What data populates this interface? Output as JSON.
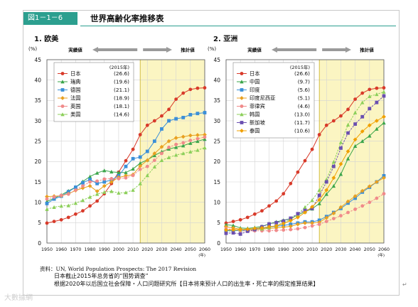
{
  "header": {
    "badge": "図1－1－6",
    "title": "世界高齢化率推移表"
  },
  "panels": [
    {
      "title": "1. 欧美"
    },
    {
      "title": "2. 亚洲"
    }
  ],
  "chart_data": [
    {
      "type": "line",
      "title": "1. 欧美",
      "unit_label": "(%)",
      "actual_label": "実績値",
      "projected_label": "推計値",
      "x_axis_unit": "(年)",
      "ylim": [
        0,
        45
      ],
      "yticks": [
        0,
        5,
        10,
        15,
        20,
        25,
        30,
        35,
        40,
        45
      ],
      "xlim": [
        1950,
        2060
      ],
      "xticks": [
        1950,
        1960,
        1970,
        1980,
        1990,
        2000,
        2010,
        2020,
        2030,
        2040,
        2050,
        2060
      ],
      "projection_start": 2015,
      "legend_header": "(2015年)",
      "legend_placement": "top-left",
      "grid": true,
      "x": [
        1950,
        1955,
        1960,
        1965,
        1970,
        1975,
        1980,
        1985,
        1990,
        1995,
        2000,
        2005,
        2010,
        2015,
        2020,
        2025,
        2030,
        2035,
        2040,
        2045,
        2050,
        2055,
        2060
      ],
      "series": [
        {
          "name": "日本",
          "value_2015": "(26.6)",
          "color": "#d83a2a",
          "marker": "circle",
          "values": [
            4.9,
            5.3,
            5.7,
            6.3,
            7.1,
            7.9,
            9.1,
            10.3,
            12.1,
            14.6,
            17.4,
            20.2,
            23.0,
            26.6,
            28.9,
            30.0,
            31.2,
            32.8,
            35.3,
            36.8,
            37.7,
            38.0,
            38.1
          ]
        },
        {
          "name": "瑞典",
          "value_2015": "(19.6)",
          "color": "#3aa54a",
          "marker": "triangle",
          "values": [
            10.2,
            11.0,
            11.8,
            12.8,
            13.7,
            15.1,
            16.3,
            17.2,
            17.8,
            17.5,
            17.3,
            17.3,
            18.2,
            19.6,
            20.4,
            21.5,
            22.4,
            23.1,
            23.5,
            23.9,
            24.5,
            25.0,
            25.5
          ]
        },
        {
          "name": "德国",
          "value_2015": "(21.1)",
          "color": "#3a8fd8",
          "marker": "square",
          "values": [
            9.7,
            10.8,
            11.5,
            12.6,
            13.7,
            14.8,
            15.6,
            14.6,
            15.0,
            15.5,
            16.5,
            18.8,
            20.7,
            21.1,
            22.5,
            25.0,
            28.0,
            30.0,
            30.5,
            30.8,
            31.5,
            31.8,
            32.0
          ]
        },
        {
          "name": "法国",
          "value_2015": "(18.9)",
          "color": "#e8a020",
          "marker": "diamond",
          "values": [
            11.4,
            11.5,
            11.6,
            12.1,
            12.9,
            13.5,
            14.0,
            12.7,
            14.0,
            15.0,
            16.1,
            16.5,
            16.8,
            18.9,
            20.3,
            22.0,
            23.6,
            25.0,
            25.8,
            26.1,
            26.4,
            26.5,
            26.6
          ]
        },
        {
          "name": "英国",
          "value_2015": "(18.1)",
          "color": "#f08a8a",
          "marker": "circle",
          "values": [
            10.8,
            11.3,
            11.7,
            12.0,
            13.0,
            14.0,
            15.0,
            15.2,
            15.7,
            15.8,
            15.8,
            16.0,
            16.6,
            18.1,
            18.8,
            20.3,
            22.0,
            23.5,
            24.2,
            24.6,
            25.2,
            25.6,
            26.0
          ]
        },
        {
          "name": "美国",
          "value_2015": "(14.6)",
          "color": "#8ccf5a",
          "marker": "triangle",
          "values": [
            8.3,
            8.8,
            9.1,
            9.2,
            9.8,
            10.5,
            11.3,
            12.0,
            12.5,
            12.7,
            12.3,
            12.4,
            13.0,
            14.6,
            16.6,
            18.7,
            20.3,
            21.0,
            21.6,
            22.0,
            22.4,
            22.8,
            23.4
          ]
        }
      ]
    },
    {
      "type": "line",
      "title": "2. 亚洲",
      "unit_label": "(%)",
      "actual_label": "実績値",
      "projected_label": "推計値",
      "x_axis_unit": "(年)",
      "ylim": [
        0,
        45
      ],
      "yticks": [
        0,
        5,
        10,
        15,
        20,
        25,
        30,
        35,
        40,
        45
      ],
      "xlim": [
        1950,
        2060
      ],
      "xticks": [
        1950,
        1960,
        1970,
        1980,
        1990,
        2000,
        2010,
        2020,
        2030,
        2040,
        2050,
        2060
      ],
      "projection_start": 2015,
      "legend_header": "(2015年)",
      "legend_placement": "top-left",
      "grid": true,
      "x": [
        1950,
        1955,
        1960,
        1965,
        1970,
        1975,
        1980,
        1985,
        1990,
        1995,
        2000,
        2005,
        2010,
        2015,
        2020,
        2025,
        2030,
        2035,
        2040,
        2045,
        2050,
        2055,
        2060
      ],
      "series": [
        {
          "name": "日本",
          "value_2015": "(26.6)",
          "color": "#d83a2a",
          "marker": "circle",
          "values": [
            4.9,
            5.3,
            5.7,
            6.3,
            7.1,
            7.9,
            9.1,
            10.3,
            12.1,
            14.6,
            17.4,
            20.2,
            23.0,
            26.6,
            28.9,
            30.0,
            31.2,
            32.8,
            35.3,
            36.8,
            37.7,
            38.0,
            38.1
          ]
        },
        {
          "name": "中国",
          "value_2015": "(9.7)",
          "color": "#3aa54a",
          "marker": "triangle",
          "values": [
            4.5,
            4.3,
            3.7,
            3.6,
            3.8,
            4.1,
            4.7,
            5.2,
            5.6,
            6.0,
            6.9,
            7.7,
            8.4,
            9.7,
            12.0,
            14.0,
            16.9,
            20.7,
            23.8,
            25.0,
            26.3,
            28.0,
            29.5
          ]
        },
        {
          "name": "印度",
          "value_2015": "(5.6)",
          "color": "#3a8fd8",
          "marker": "square",
          "values": [
            3.1,
            3.0,
            3.1,
            3.2,
            3.3,
            3.6,
            3.9,
            4.1,
            4.3,
            4.6,
            4.9,
            5.2,
            5.2,
            5.6,
            6.5,
            7.5,
            8.5,
            9.8,
            11.0,
            12.5,
            13.7,
            15.0,
            16.5
          ]
        },
        {
          "name": "印度尼西亚",
          "value_2015": "(5.1)",
          "color": "#e8a020",
          "marker": "diamond",
          "values": [
            4.0,
            3.7,
            3.4,
            3.2,
            3.3,
            3.4,
            3.6,
            3.7,
            3.9,
            4.1,
            4.6,
            4.9,
            4.9,
            5.1,
            6.2,
            7.3,
            8.8,
            10.2,
            11.5,
            12.8,
            13.9,
            15.0,
            16.0
          ]
        },
        {
          "name": "菲律宾",
          "value_2015": "(4.6)",
          "color": "#f08a8a",
          "marker": "circle",
          "values": [
            3.5,
            3.3,
            3.0,
            2.9,
            3.0,
            3.0,
            3.0,
            3.1,
            3.2,
            3.3,
            3.5,
            3.8,
            4.2,
            4.6,
            5.3,
            6.0,
            6.7,
            7.5,
            8.3,
            9.1,
            10.0,
            11.0,
            12.1
          ]
        },
        {
          "name": "韩国",
          "value_2015": "(13.0)",
          "color": "#8ccf5a",
          "marker": "triangle",
          "values": [
            2.9,
            3.0,
            3.3,
            3.4,
            3.5,
            3.5,
            3.8,
            4.3,
            5.0,
            5.8,
            7.0,
            8.8,
            10.5,
            13.0,
            15.6,
            19.9,
            24.7,
            29.0,
            32.0,
            34.5,
            36.0,
            36.5,
            37.1
          ]
        },
        {
          "name": "新加坡",
          "value_2015": "(11.7)",
          "color": "#6a4fb0",
          "marker": "square",
          "values": [
            2.4,
            2.5,
            2.2,
            2.9,
            3.3,
            4.0,
            4.7,
            5.0,
            5.4,
            6.1,
            7.2,
            8.0,
            8.5,
            11.7,
            15.0,
            18.8,
            23.3,
            27.0,
            29.2,
            31.0,
            33.0,
            34.5,
            36.1
          ]
        },
        {
          "name": "泰国",
          "value_2015": "(10.6)",
          "color": "#f0a000",
          "marker": "diamond",
          "values": [
            3.2,
            3.3,
            3.3,
            3.4,
            3.6,
            3.7,
            4.0,
            4.2,
            4.8,
            5.5,
            6.3,
            7.5,
            8.9,
            10.6,
            13.0,
            16.0,
            19.4,
            22.5,
            25.4,
            27.4,
            28.9,
            30.0,
            31.0
          ]
        }
      ]
    }
  ],
  "footer": {
    "source": "资料：UN, World Population Prospects: The 2017 Revision",
    "note1": "日本截止2015年总务省的“国势调查”",
    "note2": "根据2020年以后国立社会保障・人口问题研究所【日本将来预计人口的出生率・死亡率的假定推算结果】"
  },
  "watermark": "大數據網"
}
